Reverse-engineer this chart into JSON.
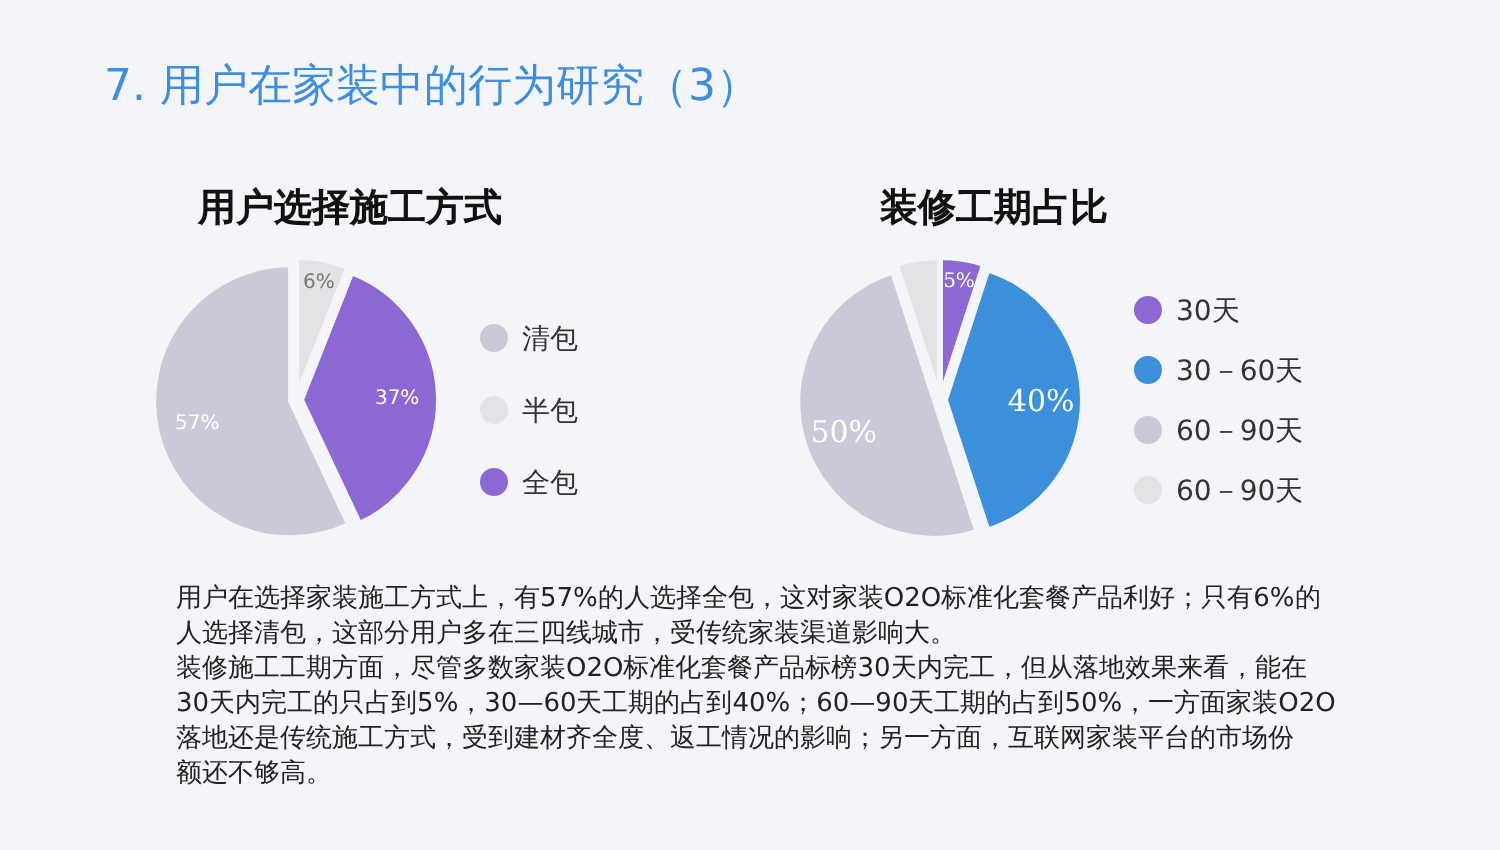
{
  "chart_data": [
    {
      "type": "pie",
      "title": "用户选择施工方式",
      "categories": [
        "清包",
        "半包",
        "全包"
      ],
      "values": [
        57,
        6,
        37
      ],
      "colors": [
        "#c9c9d8",
        "#e3e3e6",
        "#8b68d3"
      ],
      "value_labels": [
        "57%",
        "6%",
        "37%"
      ],
      "legend": "right"
    },
    {
      "type": "pie",
      "title": "装修工期占比",
      "categories": [
        "30天",
        "30－60天",
        "60－90天",
        "60－90天"
      ],
      "values": [
        5,
        40,
        50,
        5
      ],
      "colors": [
        "#8b68d3",
        "#3b8fdb",
        "#c9c9d8",
        "#e3e3e6"
      ],
      "value_labels": [
        "5%",
        "40%",
        "50%",
        null
      ],
      "legend": "right"
    },
    {
      "type": "other",
      "title": "7. 用户在家装中的行为研究（3）",
      "annotations": [
        "用户在选择家装施工方式上，有57%的人选择全包，这对家装O2O标准化套餐产品利好；只有6%的人选择清包，这部分用户多在三四线城市，受传统家装渠道影响大。",
        "装修施工工期方面，尽管多数家装O2O标准化套餐产品标榜30天内完工，但从落地效果来看，能在30天内完工的只占到5%，30—60天工期的占到40%；60—90天工期的占到50%，一方面家装O2O落地还是传统施工方式，受到建材齐全度、返工情况的影响；另一方面，互联网家装平台的市场份额还不够高。"
      ]
    }
  ]
}
